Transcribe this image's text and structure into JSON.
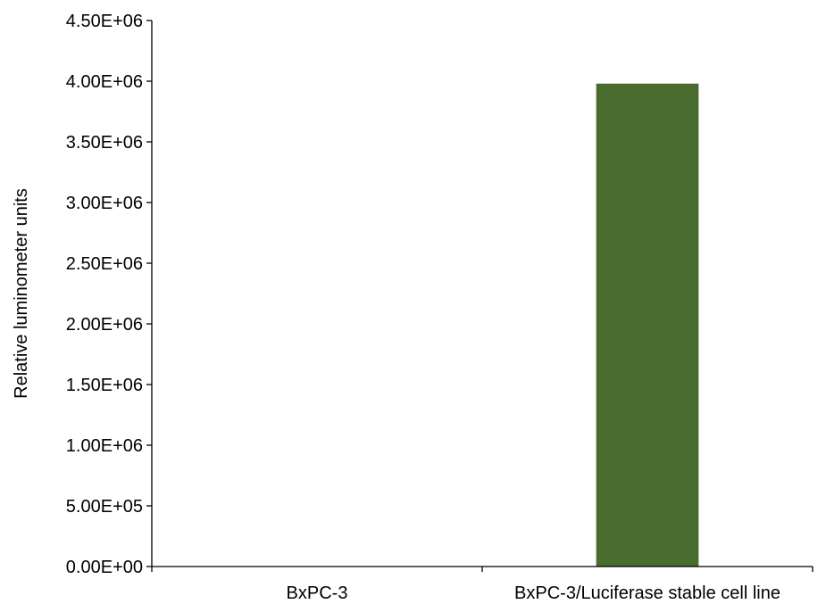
{
  "chart_data": {
    "type": "bar",
    "categories": [
      "BxPC-3",
      "BxPC-3/Luciferase stable cell line"
    ],
    "values": [
      0,
      3980000
    ],
    "title": "",
    "xlabel": "",
    "ylabel": "Relative luminometer units",
    "ylim": [
      0,
      4500000
    ],
    "yticks": [
      0,
      500000,
      1000000,
      1500000,
      2000000,
      2500000,
      3000000,
      3500000,
      4000000,
      4500000
    ],
    "ytick_labels": [
      "0.00E+00",
      "5.00E+05",
      "1.00E+06",
      "1.50E+06",
      "2.00E+06",
      "2.50E+06",
      "3.00E+06",
      "3.50E+06",
      "4.00E+06",
      "4.50E+06"
    ],
    "grid": false,
    "legend": "none",
    "bar_color": "#4a6b2e"
  }
}
